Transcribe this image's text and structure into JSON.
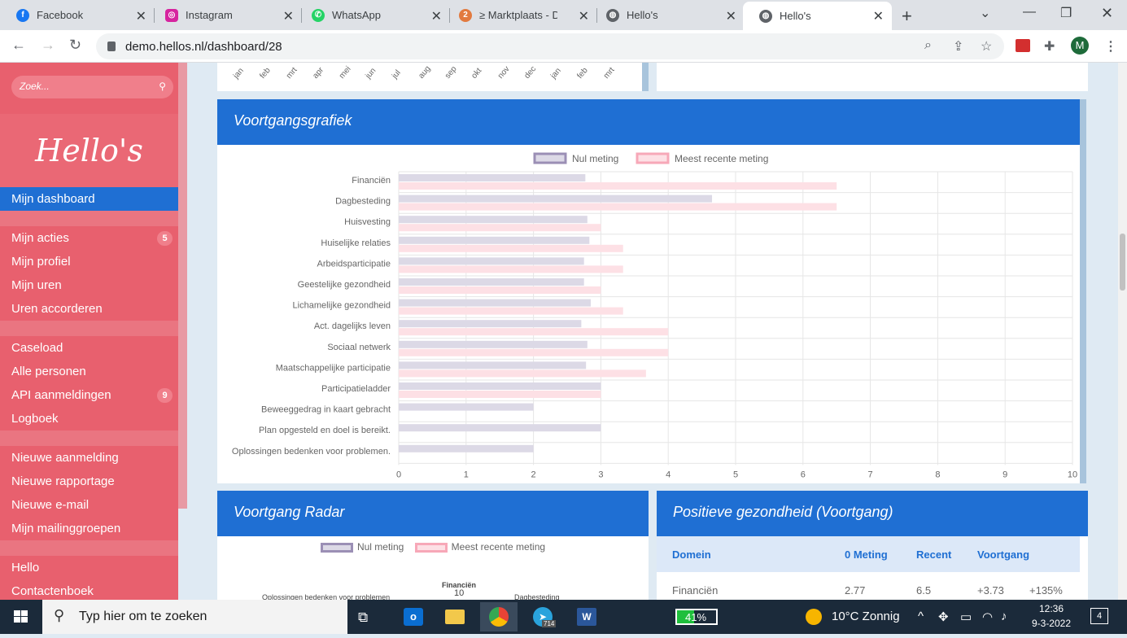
{
  "browser": {
    "tabs": [
      {
        "label": "Facebook",
        "icon": "facebook-icon",
        "color": "#1877f2"
      },
      {
        "label": "Instagram",
        "icon": "instagram-icon",
        "color": "#d6249f"
      },
      {
        "label": "WhatsApp",
        "icon": "whatsapp-icon",
        "color": "#25d366"
      },
      {
        "label": "≥ Marktplaats - De",
        "icon": "marktplaats-icon",
        "color": "#e27a3f"
      },
      {
        "label": "Hello's",
        "icon": "globe-icon",
        "color": "#5f6368"
      },
      {
        "label": "Hello's",
        "icon": "globe-icon",
        "color": "#5f6368"
      }
    ],
    "url": "demo.hellos.nl/dashboard/28",
    "profile_initial": "M"
  },
  "sidebar": {
    "search_placeholder": "Zoek...",
    "logo_text": "Hello's",
    "groups": [
      [
        {
          "label": "Mijn dashboard",
          "active": true
        }
      ],
      [
        {
          "label": "Mijn acties",
          "badge": "5"
        },
        {
          "label": "Mijn profiel"
        },
        {
          "label": "Mijn uren"
        },
        {
          "label": "Uren accorderen"
        }
      ],
      [
        {
          "label": "Caseload"
        },
        {
          "label": "Alle personen"
        },
        {
          "label": "API aanmeldingen",
          "badge": "9"
        },
        {
          "label": "Logboek"
        }
      ],
      [
        {
          "label": "Nieuwe aanmelding"
        },
        {
          "label": "Nieuwe rapportage"
        },
        {
          "label": "Nieuwe e-mail"
        },
        {
          "label": "Mijn mailinggroepen"
        }
      ],
      [
        {
          "label": "Hello"
        },
        {
          "label": "Contactenboek"
        }
      ]
    ]
  },
  "top_chart": {
    "months": [
      "jan",
      "feb",
      "mrt",
      "apr",
      "mei",
      "jun",
      "jul",
      "aug",
      "sep",
      "okt",
      "nov",
      "dec",
      "jan",
      "feb",
      "mrt"
    ]
  },
  "progress_card": {
    "title": "Voortgangsgrafiek"
  },
  "chart_data": {
    "type": "bar",
    "orientation": "horizontal",
    "title": "",
    "xlabel": "",
    "ylabel": "",
    "xlim": [
      0,
      10
    ],
    "xticks": [
      "0",
      "1",
      "2",
      "3",
      "4",
      "5",
      "6",
      "7",
      "8",
      "9",
      "10"
    ],
    "grid": true,
    "legend_position": "top",
    "categories": [
      "Financiën",
      "Dagbesteding",
      "Huisvesting",
      "Huiselijke relaties",
      "Arbeidsparticipatie",
      "Geestelijke gezondheid",
      "Lichamelijke gezondheid",
      "Act. dagelijks leven",
      "Sociaal netwerk",
      "Maatschappelijke participatie",
      "Participatieladder",
      "Beweeggedrag in kaart gebracht",
      "Plan opgesteld en doel is bereikt.",
      "Oplossingen bedenken voor problemen."
    ],
    "series": [
      {
        "name": "Nul meting",
        "color": "#dcd9e6",
        "border": "#9b8fb5",
        "values": [
          2.77,
          4.65,
          2.8,
          2.83,
          2.75,
          2.75,
          2.85,
          2.71,
          2.8,
          2.78,
          3.0,
          2.0,
          3.0,
          2.0
        ]
      },
      {
        "name": "Meest recente meting",
        "color": "#fde0e5",
        "border": "#f7a8b8",
        "values": [
          6.5,
          6.5,
          3.0,
          3.33,
          3.33,
          3.0,
          3.33,
          4.0,
          4.0,
          3.67,
          3.0,
          null,
          null,
          null
        ]
      }
    ]
  },
  "radar_card": {
    "title": "Voortgang Radar",
    "legend": [
      "Nul meting",
      "Meest recente meting"
    ],
    "labels": [
      "Oplossingen bedenken voor problemen",
      "Financiën",
      "10",
      "Dagbesteding"
    ]
  },
  "health_card": {
    "title": "Positieve gezondheid (Voortgang)",
    "headers": [
      "Domein",
      "0 Meting",
      "Recent",
      "Voortgang"
    ],
    "row": [
      "Financiën",
      "2.77",
      "6.5",
      "+3.73",
      "+135%"
    ]
  },
  "taskbar": {
    "search_placeholder": "Typ hier om te zoeken",
    "telegram_badge": "714",
    "battery": "41%",
    "weather": "10°C  Zonnig",
    "time": "12:36",
    "date": "9-3-2022",
    "notifications": "4"
  }
}
